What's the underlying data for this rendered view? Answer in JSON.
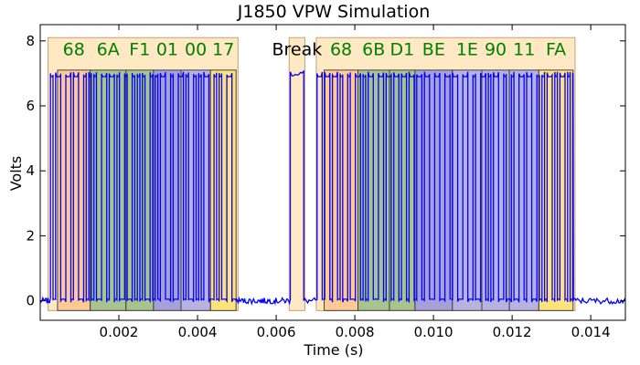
{
  "chart_data": {
    "type": "line",
    "title": "J1850 VPW Simulation",
    "xlabel": "Time (s)",
    "ylabel": "Volts",
    "xlim": [
      0.0,
      0.01488
    ],
    "ylim": [
      -0.6,
      8.5
    ],
    "xticks": [
      0.002,
      0.004,
      0.006,
      0.008,
      0.01,
      0.012,
      0.014
    ],
    "xtick_labels": [
      "0.002",
      "0.004",
      "0.006",
      "0.008",
      "0.010",
      "0.012",
      "0.014"
    ],
    "yticks": [
      0,
      2,
      4,
      6,
      8
    ],
    "ytick_labels": [
      "0",
      "2",
      "4",
      "6",
      "8"
    ],
    "grid": false,
    "series": [
      {
        "color": "#0000ff",
        "high_level": 7.0,
        "low_level": 0.0
      }
    ],
    "frames": [
      {
        "x_start": 0.0002,
        "x_end": 0.00503,
        "y_min": -0.3,
        "y_max": 8.1,
        "color": "#ffe0b0"
      },
      {
        "x_start": 0.00633,
        "x_end": 0.00673,
        "y_min": -0.3,
        "y_max": 8.1,
        "color": "#ffe0b0"
      },
      {
        "x_start": 0.00702,
        "x_end": 0.0136,
        "y_min": -0.3,
        "y_max": 8.1,
        "color": "#ffe0b0"
      }
    ],
    "bytes": [
      {
        "label": "68",
        "x_start": 0.00044,
        "x_end": 0.00127,
        "color": "#ffc080"
      },
      {
        "label": "6A",
        "x_start": 0.00127,
        "x_end": 0.00218,
        "color": "#88b878"
      },
      {
        "label": "F1",
        "x_start": 0.00218,
        "x_end": 0.00288,
        "color": "#88b878"
      },
      {
        "label": "01",
        "x_start": 0.00288,
        "x_end": 0.00358,
        "color": "#8888e0"
      },
      {
        "label": "00",
        "x_start": 0.00358,
        "x_end": 0.00433,
        "color": "#a0a0e8"
      },
      {
        "label": "17",
        "x_start": 0.00433,
        "x_end": 0.00498,
        "color": "#ffe060"
      },
      {
        "label": "68",
        "x_start": 0.00722,
        "x_end": 0.00808,
        "color": "#ffc080"
      },
      {
        "label": "6B",
        "x_start": 0.00808,
        "x_end": 0.00888,
        "color": "#88b878"
      },
      {
        "label": "D1",
        "x_start": 0.00888,
        "x_end": 0.00953,
        "color": "#88b878"
      },
      {
        "label": "BE",
        "x_start": 0.00953,
        "x_end": 0.01048,
        "color": "#8888e0"
      },
      {
        "label": "1E",
        "x_start": 0.01048,
        "x_end": 0.01123,
        "color": "#a0a0e8"
      },
      {
        "label": "90",
        "x_start": 0.01123,
        "x_end": 0.01193,
        "color": "#a0a0e8"
      },
      {
        "label": "11",
        "x_start": 0.01193,
        "x_end": 0.01268,
        "color": "#a0a0e8"
      },
      {
        "label": "FA",
        "x_start": 0.01268,
        "x_end": 0.01355,
        "color": "#ffe060"
      }
    ],
    "byte_label_color": "#008000",
    "annotations": [
      {
        "text": "Break",
        "x": 0.00653,
        "y": 7.75
      }
    ]
  }
}
